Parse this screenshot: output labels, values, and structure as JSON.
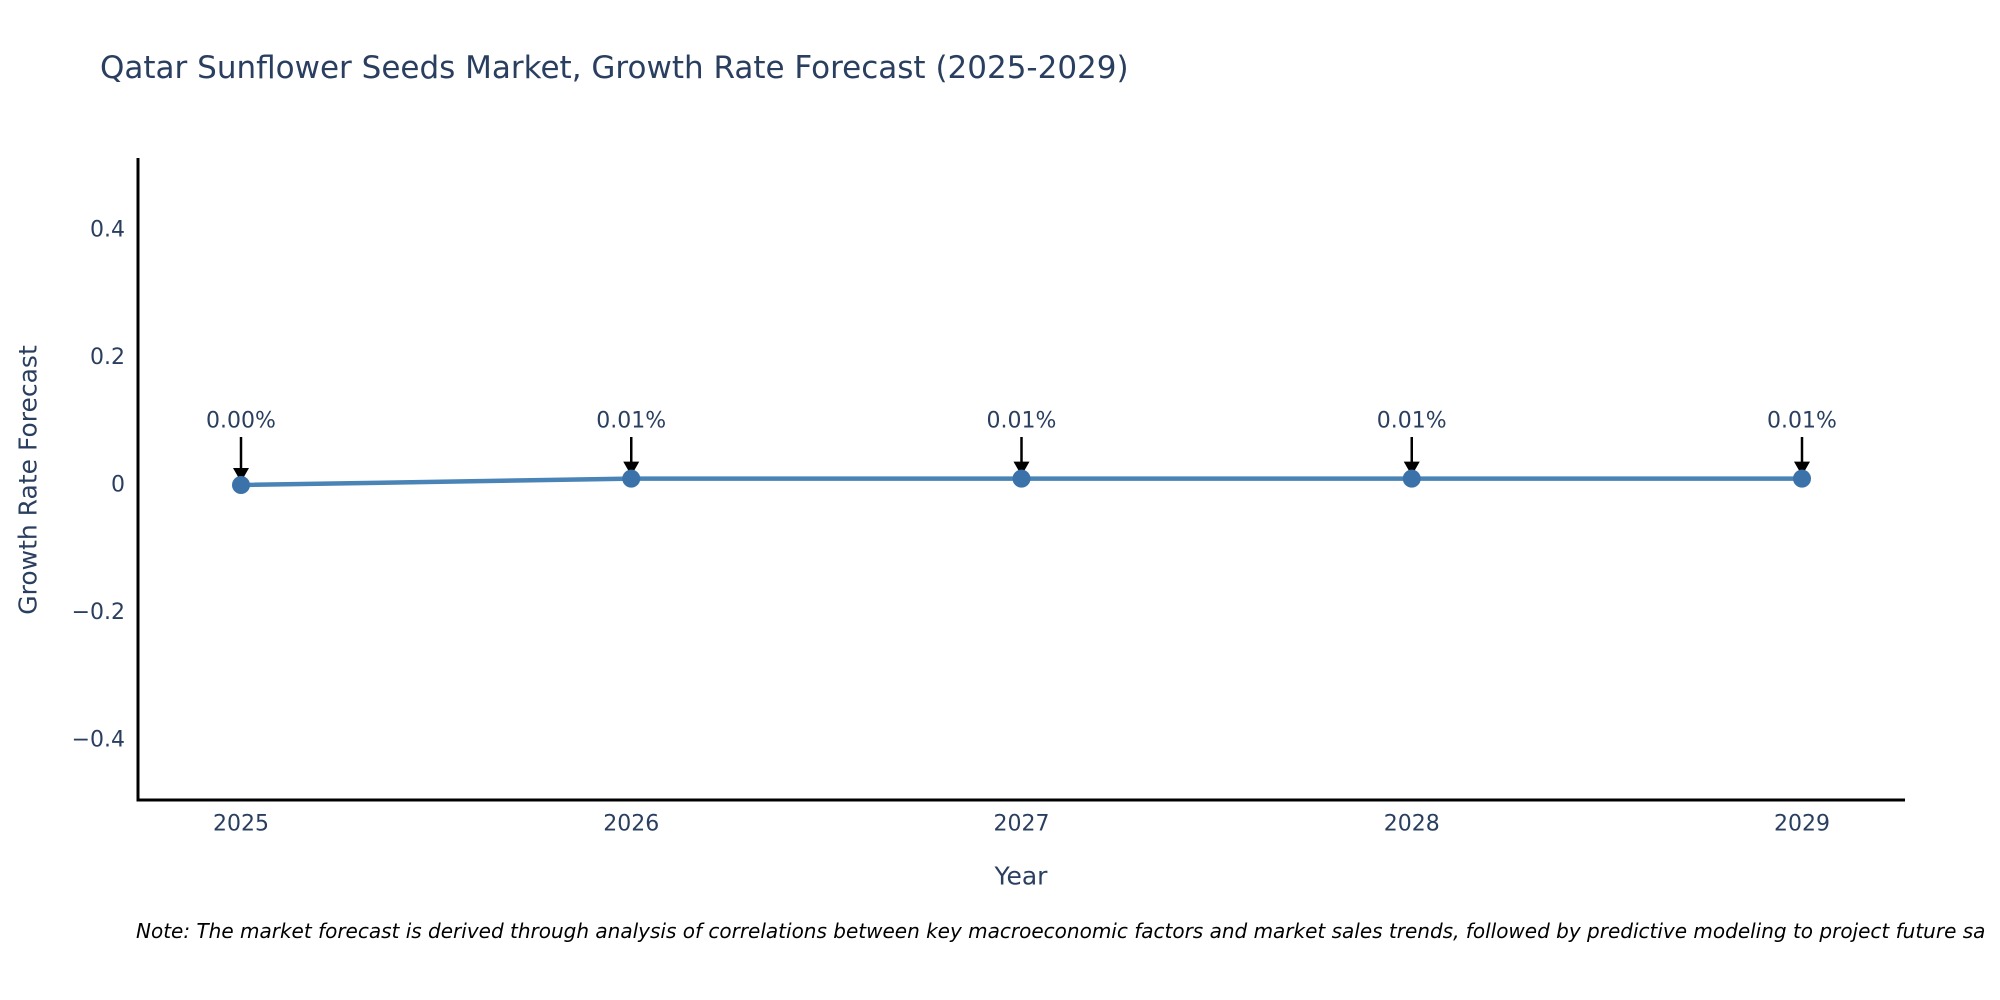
{
  "page": {
    "background": "#ffffff"
  },
  "chart_data": {
    "type": "line",
    "title": "Qatar Sunflower Seeds Market, Growth Rate Forecast (2025-2029)",
    "xlabel": "Year",
    "ylabel": "Growth Rate Forecast",
    "x": [
      2025,
      2026,
      2027,
      2028,
      2029
    ],
    "series": [
      {
        "name": "Growth Rate Forecast",
        "values": [
          0.0,
          0.01,
          0.01,
          0.01,
          0.01
        ]
      }
    ],
    "point_labels": [
      "0.00%",
      "0.01%",
      "0.01%",
      "0.01%",
      "0.01%"
    ],
    "x_tick_labels": [
      "2025",
      "2026",
      "2027",
      "2028",
      "2029"
    ],
    "y_tick_labels": [
      "0.4",
      "0.2",
      "0",
      "−0.2",
      "−0.4"
    ],
    "y_tick_values": [
      0.4,
      0.2,
      0,
      -0.2,
      -0.4
    ],
    "ylim": [
      -0.5,
      0.5
    ],
    "grid": false,
    "legend_position": "none",
    "colors": {
      "line": "#4a83b6",
      "marker": "#3b72a9",
      "axis": "#000000",
      "text": "#2a3f5f",
      "annotation_arrow": "#000000"
    }
  },
  "note": "Note: The market forecast is derived through analysis of correlations between key macroeconomic factors and market sales trends, followed by predictive modeling to project future sa"
}
